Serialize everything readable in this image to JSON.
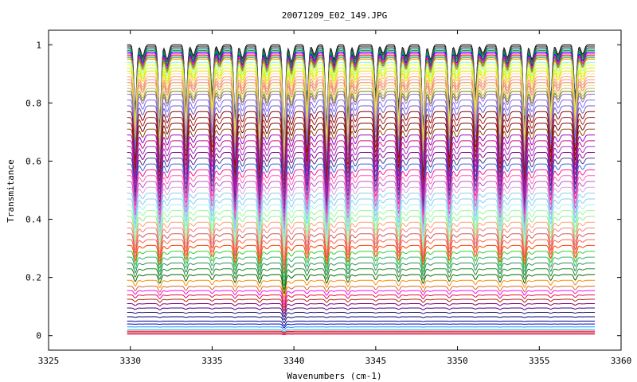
{
  "chart_data": {
    "type": "line",
    "title": "20071209_E02_149.JPG",
    "xlabel": "Wavenumbers (cm-1)",
    "ylabel": "Transmitance",
    "xlim": [
      3325,
      3360
    ],
    "ylim": [
      -0.05,
      1.05
    ],
    "x_ticks": [
      3325,
      3330,
      3335,
      3340,
      3345,
      3350,
      3355,
      3360
    ],
    "y_ticks": [
      0,
      0.2,
      0.4,
      0.6,
      0.8,
      1
    ],
    "x_tick_labels": [
      "3325",
      "3330",
      "3335",
      "3340",
      "3345",
      "3350",
      "3355",
      "3360"
    ],
    "y_tick_labels": [
      "0",
      "0.2",
      "0.4",
      "0.6",
      "0.8",
      "1"
    ],
    "grid": false,
    "legend": "none",
    "x_range_data": [
      3329.8,
      3358.4
    ],
    "absorption_lines": [
      3330.3,
      3331.8,
      3333.4,
      3335.0,
      3336.4,
      3337.9,
      3339.4,
      3340.8,
      3342.0,
      3343.3,
      3345.0,
      3346.4,
      3347.9,
      3349.5,
      3351.1,
      3352.6,
      3354.1,
      3355.7,
      3357.2
    ],
    "series_baselines": [
      1.0,
      0.995,
      0.99,
      0.985,
      0.98,
      0.975,
      0.97,
      0.965,
      0.96,
      0.955,
      0.95,
      0.94,
      0.93,
      0.92,
      0.91,
      0.9,
      0.89,
      0.88,
      0.87,
      0.86,
      0.85,
      0.84,
      0.83,
      0.81,
      0.79,
      0.77,
      0.75,
      0.73,
      0.71,
      0.69,
      0.67,
      0.65,
      0.63,
      0.61,
      0.59,
      0.57,
      0.55,
      0.53,
      0.51,
      0.49,
      0.47,
      0.45,
      0.43,
      0.41,
      0.39,
      0.37,
      0.35,
      0.33,
      0.31,
      0.29,
      0.27,
      0.25,
      0.23,
      0.21,
      0.19,
      0.17,
      0.155,
      0.14,
      0.125,
      0.11,
      0.095,
      0.08,
      0.065,
      0.05,
      0.04,
      0.03,
      0.02,
      0.015,
      0.01,
      0.005
    ],
    "series_colors": [
      "#000000",
      "#404040",
      "#2f4f4f",
      "#008080",
      "#00a000",
      "#0000ff",
      "#ff00ff",
      "#ff0000",
      "#00c0c0",
      "#808000",
      "#ffa500",
      "#7fffd4",
      "#ffff00",
      "#adff2f",
      "#ffd700",
      "#ffdead",
      "#f4a460",
      "#e9967a",
      "#fa8072",
      "#f0e68c",
      "#bdb76b",
      "#808000",
      "#9370db",
      "#7b68ee",
      "#6a5acd",
      "#8b0000",
      "#a52a2a",
      "#800000",
      "#8b4513",
      "#9400d3",
      "#c71585",
      "#9932cc",
      "#8b008b",
      "#483d8b",
      "#4169e1",
      "#ff1493",
      "#ff69b4",
      "#ba55d3",
      "#dda0dd",
      "#87ceeb",
      "#87cefa",
      "#afeeee",
      "#98fb98",
      "#90ee90",
      "#ffa07a",
      "#f08080",
      "#cd5c5c",
      "#ff6347",
      "#ff4500",
      "#32cd32",
      "#3cb371",
      "#2e8b57",
      "#228b22",
      "#006400",
      "#ff8c00",
      "#d2691e",
      "#ff00ff",
      "#dc143c",
      "#b22222",
      "#800080",
      "#4b0082",
      "#191970",
      "#000080",
      "#00008b",
      "#0000cd",
      "#1e90ff",
      "#00bfff",
      "#ff0000",
      "#c00000",
      "#e00060"
    ]
  }
}
